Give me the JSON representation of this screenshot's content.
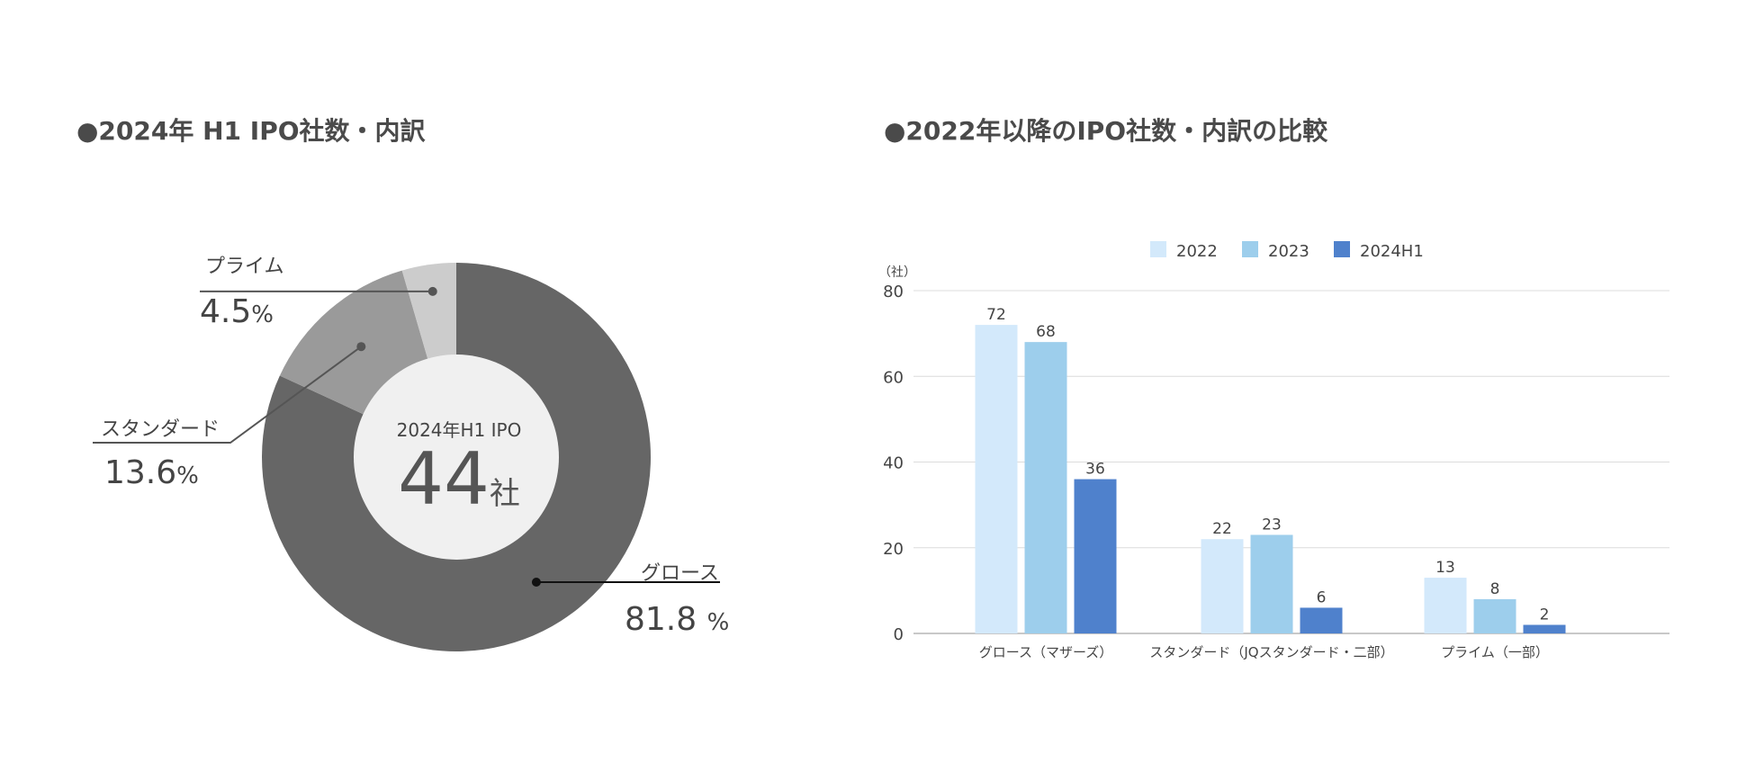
{
  "left_title": "●2024年 H1 IPO社数・内訳",
  "right_title": "●2022年以降のIPO社数・内訳の比較",
  "chart_data": [
    {
      "type": "pie",
      "center_label": "2024年H1 IPO",
      "center_value": "44",
      "center_unit": "社",
      "slices": [
        {
          "name": "グロース",
          "value": 81.8,
          "value_label": "81.8",
          "unit": "%",
          "color": "#666666"
        },
        {
          "name": "スタンダード",
          "value": 13.6,
          "value_label": "13.6",
          "unit": "%",
          "color": "#9a9a9a"
        },
        {
          "name": "プライム",
          "value": 4.5,
          "value_label": "4.5",
          "unit": "%",
          "color": "#cccccc"
        }
      ],
      "center_color": "#f0f0f0"
    },
    {
      "type": "bar",
      "categories": [
        "グロース（マザーズ）",
        "スタンダード（JQスタンダード・二部）",
        "プライム（一部）"
      ],
      "series": [
        {
          "name": "2022",
          "values": [
            72,
            22,
            13
          ],
          "color": "#d3e9fb"
        },
        {
          "name": "2023",
          "values": [
            68,
            23,
            8
          ],
          "color": "#9dceec"
        },
        {
          "name": "2024H1",
          "values": [
            36,
            6,
            2
          ],
          "color": "#4f81cc"
        }
      ],
      "ylabel": "（社）",
      "ylim": [
        0,
        80
      ],
      "yticks": [
        0,
        20,
        40,
        60,
        80
      ],
      "grid": true,
      "legend": "top"
    }
  ]
}
